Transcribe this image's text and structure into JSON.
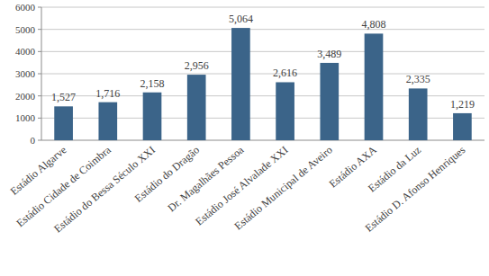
{
  "chart_data": {
    "type": "bar",
    "categories": [
      "Estádio Algarve",
      "Estádio Cidade de Coimbra",
      "Estádio do Bessa Século XXI",
      "Estádio do Dragão",
      "Dr. Magalhães Pessoa",
      "Estádio José Alvalade XXI",
      "Estádio Municipal de Aveiro",
      "Estádio AXA",
      "Estádio da Luz",
      "Estádio D. Afonso Henriques"
    ],
    "values": [
      1527,
      1716,
      2158,
      2956,
      5064,
      2616,
      3489,
      4808,
      2335,
      1219
    ],
    "value_labels": [
      "1,527",
      "1,716",
      "2,158",
      "2,956",
      "5,064",
      "2,616",
      "3,489",
      "4,808",
      "2,335",
      "1,219"
    ],
    "color": "#3b6489",
    "ylim": [
      0,
      6000
    ],
    "yticks": [
      0,
      1000,
      2000,
      3000,
      4000,
      5000,
      6000
    ],
    "grid": true,
    "data_labels": true
  }
}
